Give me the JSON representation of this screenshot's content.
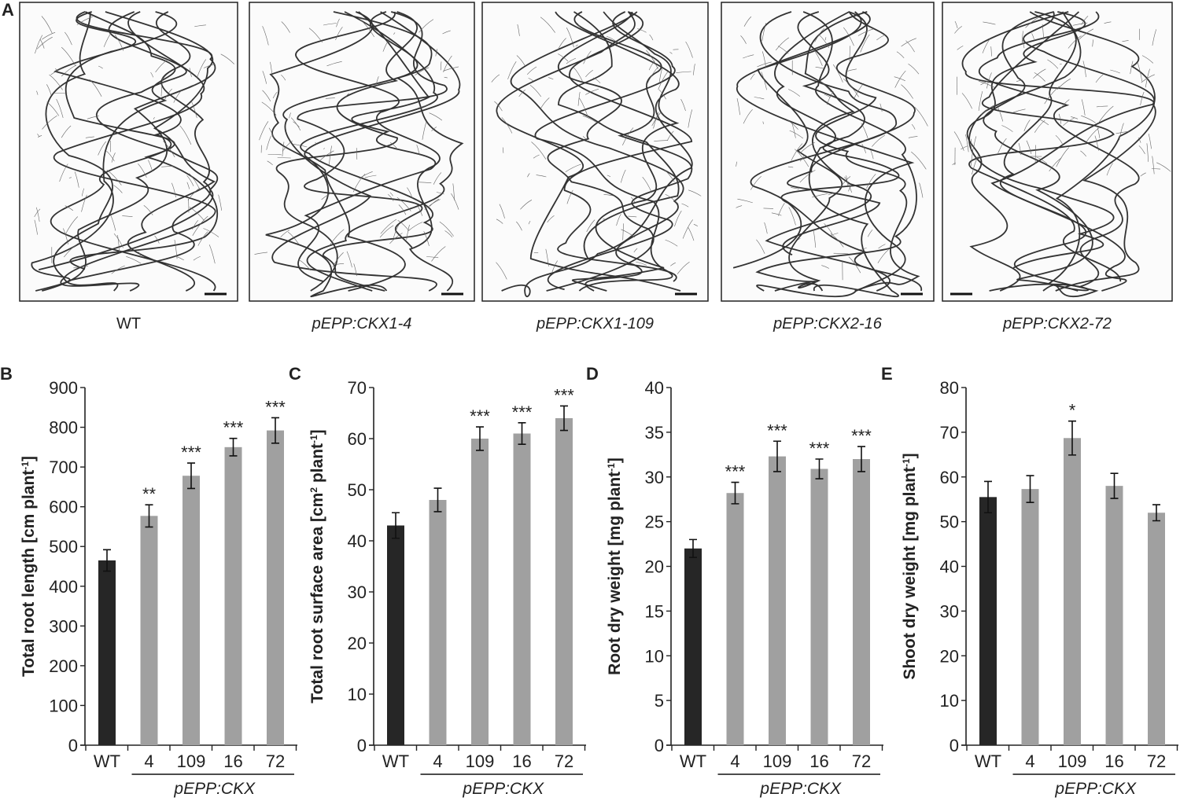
{
  "panel_a": {
    "letter": "A",
    "images": [
      {
        "label": "WT",
        "italic": false
      },
      {
        "label": "pEPP:CKX1-4",
        "italic": true
      },
      {
        "label": "pEPP:CKX1-109",
        "italic": true
      },
      {
        "label": "pEPP:CKX2-16",
        "italic": true
      },
      {
        "label": "pEPP:CKX2-72",
        "italic": true
      }
    ]
  },
  "colors": {
    "wt": "#262626",
    "transgenic": "#a0a0a0",
    "axis": "#222222"
  },
  "chart_data": [
    {
      "type": "bar",
      "letter": "B",
      "categories": [
        "WT",
        "4",
        "109",
        "16",
        "72"
      ],
      "group_label": "pEPP:CKX",
      "ylabel": [
        {
          "t": "Total root length [cm plant"
        },
        {
          "t": "-1",
          "sup": true
        },
        {
          "t": "]"
        }
      ],
      "ylim": [
        0,
        900
      ],
      "yticks": [
        0,
        100,
        200,
        300,
        400,
        500,
        600,
        700,
        800,
        900
      ],
      "values": [
        465,
        577,
        678,
        750,
        792
      ],
      "errors": [
        27,
        28,
        32,
        22,
        32
      ],
      "significance": [
        "",
        "**",
        "***",
        "***",
        "***"
      ]
    },
    {
      "type": "bar",
      "letter": "C",
      "categories": [
        "WT",
        "4",
        "109",
        "16",
        "72"
      ],
      "group_label": "pEPP:CKX",
      "ylabel": [
        {
          "t": "Total root surface area [cm"
        },
        {
          "t": "2",
          "sup": true
        },
        {
          "t": " plant"
        },
        {
          "t": "-1",
          "sup": true
        },
        {
          "t": "]"
        }
      ],
      "ylim": [
        0,
        70
      ],
      "yticks": [
        0,
        10,
        20,
        30,
        40,
        50,
        60,
        70
      ],
      "values": [
        43,
        48,
        60,
        61,
        64
      ],
      "errors": [
        2.5,
        2.3,
        2.3,
        2.1,
        2.4
      ],
      "significance": [
        "",
        "",
        "***",
        "***",
        "***"
      ]
    },
    {
      "type": "bar",
      "letter": "D",
      "categories": [
        "WT",
        "4",
        "109",
        "16",
        "72"
      ],
      "group_label": "pEPP:CKX",
      "ylabel": [
        {
          "t": "Root dry weight [mg plant"
        },
        {
          "t": "-1",
          "sup": true
        },
        {
          "t": "]"
        }
      ],
      "ylim": [
        0,
        40
      ],
      "yticks": [
        0,
        5,
        10,
        15,
        20,
        25,
        30,
        35,
        40
      ],
      "values": [
        22,
        28.2,
        32.3,
        30.9,
        32
      ],
      "errors": [
        1.0,
        1.2,
        1.7,
        1.1,
        1.4
      ],
      "significance": [
        "",
        "***",
        "***",
        "***",
        "***"
      ]
    },
    {
      "type": "bar",
      "letter": "E",
      "categories": [
        "WT",
        "4",
        "109",
        "16",
        "72"
      ],
      "group_label": "pEPP:CKX",
      "ylabel": [
        {
          "t": "Shoot dry weight [mg plant"
        },
        {
          "t": "-1",
          "sup": true
        },
        {
          "t": "]"
        }
      ],
      "ylim": [
        0,
        80
      ],
      "yticks": [
        0,
        10,
        20,
        30,
        40,
        50,
        60,
        70,
        80
      ],
      "values": [
        55.5,
        57.3,
        68.7,
        58,
        52
      ],
      "errors": [
        3.5,
        3.0,
        3.8,
        2.8,
        1.8
      ],
      "significance": [
        "",
        "",
        "*",
        "",
        ""
      ]
    }
  ]
}
